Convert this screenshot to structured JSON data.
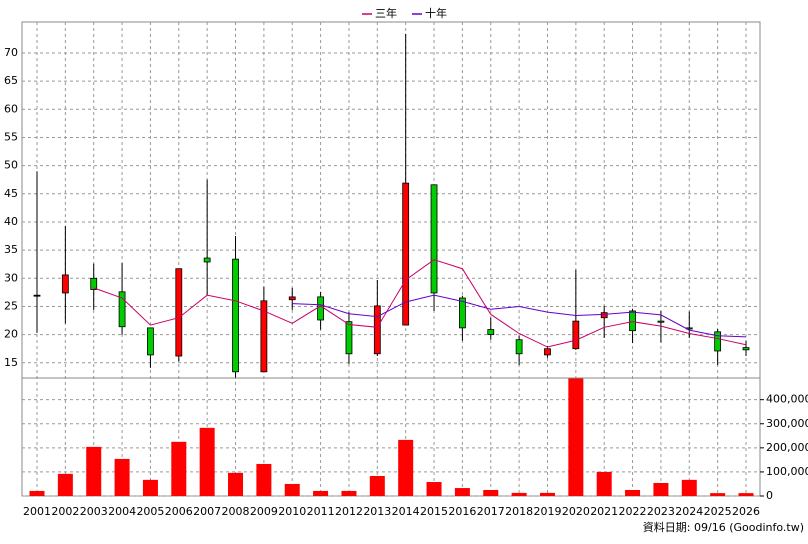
{
  "chart_data": [
    {
      "type": "candlestick",
      "categories": [
        "2001",
        "2002",
        "2003",
        "2004",
        "2005",
        "2006",
        "2007",
        "2008",
        "2009",
        "2010",
        "2011",
        "2012",
        "2013",
        "2014",
        "2015",
        "2016",
        "2017",
        "2018",
        "2019",
        "2020",
        "2021",
        "2022",
        "2023",
        "2024",
        "2025",
        "2026"
      ],
      "open": [
        27,
        27.4,
        30,
        27.6,
        21.2,
        16.2,
        33.6,
        33.4,
        13.4,
        26.2,
        26.7,
        22.3,
        16.6,
        21.7,
        46.6,
        26.5,
        20.9,
        19.1,
        16.4,
        17.5,
        23,
        24.2,
        22.4,
        21.2,
        20.5,
        17.7
      ],
      "high": [
        49,
        39.3,
        32.6,
        32.7,
        21.2,
        31.7,
        47.5,
        37.5,
        28.5,
        28.3,
        27.6,
        24,
        29.7,
        73.4,
        46.6,
        26.9,
        23,
        19.8,
        18,
        31.5,
        25.1,
        24.6,
        24.2,
        24.1,
        21,
        18.9
      ],
      "low": [
        20.3,
        22,
        24.4,
        20,
        14.1,
        15.2,
        27,
        12.3,
        13.4,
        24.4,
        20.9,
        14.8,
        16.2,
        21.7,
        24.2,
        18.9,
        19.1,
        14.6,
        15.9,
        17.3,
        19.4,
        18.5,
        18.6,
        19.4,
        14.6,
        16.2
      ],
      "close": [
        27,
        30.6,
        28,
        21.4,
        16.4,
        31.7,
        32.9,
        13.4,
        26,
        26.7,
        22.6,
        16.6,
        25.1,
        46.9,
        27.4,
        21.2,
        20,
        16.6,
        17.5,
        22.4,
        23.9,
        20.7,
        22.2,
        21,
        17.1,
        17.3
      ],
      "up_color": "#ff0000",
      "down_color": "#00cc00",
      "series": [
        {
          "name": "三年",
          "color": "#cc0066",
          "values": [
            null,
            null,
            28.3,
            26.5,
            21.7,
            23,
            27,
            26,
            24.2,
            22,
            25.1,
            21.8,
            21.3,
            29.7,
            33.3,
            31.7,
            23.6,
            20.2,
            17.8,
            19,
            21.3,
            22.3,
            21.5,
            20.2,
            19.3,
            18.2
          ]
        },
        {
          "name": "十年",
          "color": "#6600cc",
          "values": [
            null,
            null,
            null,
            null,
            null,
            null,
            null,
            null,
            null,
            25.5,
            25.3,
            23.7,
            23.2,
            25.8,
            27,
            25.9,
            24.5,
            25,
            24,
            23.4,
            23.6,
            24,
            23.5,
            20.8,
            19.8,
            19.6
          ]
        }
      ],
      "ylim": [
        12.3,
        75.5
      ],
      "yticks": [
        15,
        20,
        25,
        30,
        35,
        40,
        45,
        50,
        55,
        60,
        65,
        70
      ],
      "grid": true
    },
    {
      "type": "bar",
      "values": [
        21000,
        92000,
        204000,
        154000,
        67000,
        225000,
        283000,
        96000,
        133000,
        50000,
        21000,
        21000,
        83000,
        233000,
        58000,
        33000,
        25000,
        13000,
        13000,
        488000,
        100000,
        25000,
        54000,
        67000,
        12000,
        12000
      ],
      "color": "#ff0000",
      "ylim": [
        0,
        490000
      ],
      "yticks": [
        0,
        {
          "value": 100000,
          "label": "100,000"
        },
        {
          "value": 200000,
          "label": "200,000"
        },
        {
          "value": 300000,
          "label": "300,000"
        },
        {
          "value": 400000,
          "label": "400,000"
        }
      ],
      "grid": true,
      "source": "資料日期: 09/16 (Goodinfo.tw)"
    }
  ]
}
